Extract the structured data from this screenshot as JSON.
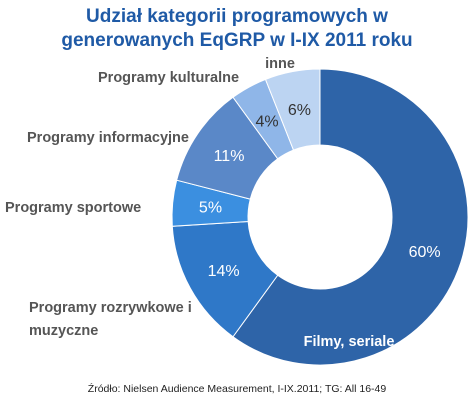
{
  "chart_data": {
    "type": "pie",
    "title_lines": [
      "Udział kategorii programowych w",
      "generowanych EqGRP w I-IX 2011 roku"
    ],
    "slices": [
      {
        "label": "Filmy, seriale",
        "value": 60,
        "value_label": "60%",
        "color": "#2e64a8"
      },
      {
        "label_lines": [
          "Programy  rozrywkowe i",
          "muzyczne"
        ],
        "value": 14,
        "value_label": "14%",
        "color": "#2f78c8"
      },
      {
        "label": "Programy sportowe",
        "value": 5,
        "value_label": "5%",
        "color": "#3b8fe0"
      },
      {
        "label": "Programy informacyjne",
        "value": 11,
        "value_label": "11%",
        "color": "#5a88c8"
      },
      {
        "label": "Programy kulturalne",
        "value": 4,
        "value_label": "4%",
        "color": "#8fb6e8"
      },
      {
        "label": "inne",
        "value": 6,
        "value_label": "6%",
        "color": "#bcd4f2"
      }
    ],
    "source": "Źródło: Nielsen Audience Measurement, I-IX.2011; TG: All 16-49"
  }
}
